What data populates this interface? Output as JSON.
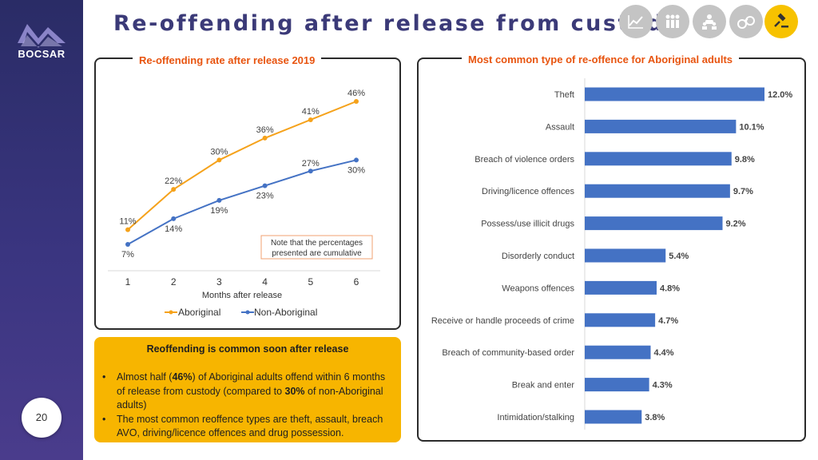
{
  "sidebar": {
    "logo_text": "BOCSAR",
    "page_number": "20"
  },
  "title": "Re-offending after release from custody",
  "nav_icons": [
    {
      "name": "line-chart-icon",
      "active": false
    },
    {
      "name": "people-icon",
      "active": false
    },
    {
      "name": "users-icon",
      "active": false
    },
    {
      "name": "handcuffs-icon",
      "active": false
    },
    {
      "name": "gavel-icon",
      "active": true
    }
  ],
  "colors": {
    "aboriginal": "#f5a21b",
    "non_aboriginal": "#4472c4",
    "bar": "#4472c4",
    "title": "#3b3a78",
    "accent": "#e8540f",
    "summary_bg": "#f7b500"
  },
  "chart_data": [
    {
      "type": "line",
      "title": "Re-offending rate after release 2019",
      "xlabel": "Months after release",
      "ylabel": "",
      "x": [
        1,
        2,
        3,
        4,
        5,
        6
      ],
      "ylim": [
        0,
        50
      ],
      "series": [
        {
          "name": "Aboriginal",
          "values": [
            11,
            22,
            30,
            36,
            41,
            46
          ],
          "labels": [
            "11%",
            "22%",
            "30%",
            "36%",
            "41%",
            "46%"
          ]
        },
        {
          "name": "Non-Aboriginal",
          "values": [
            7,
            14,
            19,
            23,
            27,
            30
          ],
          "labels": [
            "7%",
            "14%",
            "19%",
            "23%",
            "27%",
            "30%"
          ]
        }
      ],
      "legend": "bottom",
      "annotation": [
        "Note that the percentages",
        "presented are cumulative"
      ]
    },
    {
      "type": "bar",
      "orientation": "horizontal",
      "title": "Most common type of re-offence for Aboriginal adults",
      "categories": [
        "Theft",
        "Assault",
        "Breach of violence orders",
        "Driving/licence offences",
        "Possess/use illicit drugs",
        "Disorderly conduct",
        "Weapons offences",
        "Receive or handle proceeds of crime",
        "Breach of community-based order",
        "Break and enter",
        "Intimidation/stalking"
      ],
      "values": [
        12.0,
        10.1,
        9.8,
        9.7,
        9.2,
        5.4,
        4.8,
        4.7,
        4.4,
        4.3,
        3.8
      ],
      "labels": [
        "12.0%",
        "10.1%",
        "9.8%",
        "9.7%",
        "9.2%",
        "5.4%",
        "4.8%",
        "4.7%",
        "4.4%",
        "4.3%",
        "3.8%"
      ],
      "xlim": [
        0,
        12
      ]
    }
  ],
  "summary": {
    "heading": "Reoffending is common soon after release",
    "bullet1": {
      "p1": "Almost half (",
      "b1": "46%",
      "p2": ") of Aboriginal adults offend within 6 months of release from custody (compared to ",
      "b2": "30%",
      "p3": " of non-Aboriginal adults)"
    },
    "bullet2": "The most common reoffence types are theft, assault, breach AVO, driving/licence offences and drug possession."
  }
}
